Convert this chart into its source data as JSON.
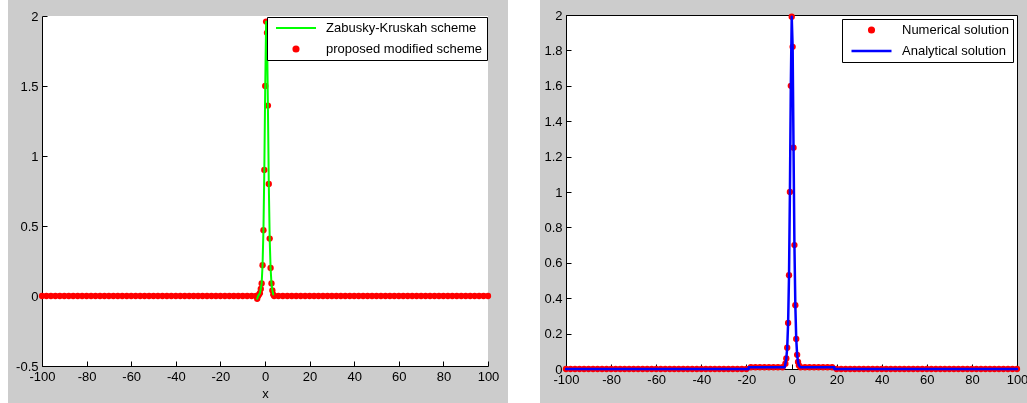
{
  "chart_data": [
    {
      "type": "line",
      "xlabel": "x",
      "xlim": [
        -100,
        100
      ],
      "xticks": [
        -100,
        -80,
        -60,
        -40,
        -20,
        0,
        20,
        40,
        60,
        80,
        100
      ],
      "ylim": [
        -0.5,
        2
      ],
      "yticks": [
        -0.5,
        0,
        0.5,
        1,
        1.5,
        2
      ],
      "legend": "top right",
      "series": [
        {
          "name": "Zabusky-Kruskah scheme",
          "type": "line",
          "color": "#00ff00",
          "x": [
            -3.5,
            -3.1,
            -2.7,
            -2.3,
            -1.9,
            -1.5,
            -1.1,
            -0.7,
            -0.3,
            0.1,
            0.5,
            0.9,
            1.3,
            1.7,
            2.1,
            2.5,
            2.9,
            3.3,
            3.7
          ],
          "values": [
            -0.02,
            0,
            0.01,
            0.02,
            0.05,
            0.09,
            0.22,
            0.47,
            0.9,
            1.5,
            1.96,
            1.88,
            1.36,
            0.8,
            0.41,
            0.2,
            0.09,
            0.04,
            0.01
          ]
        },
        {
          "name": "proposed modified scheme",
          "type": "scatter",
          "marker": "circle",
          "color": "#ff0000",
          "x": [
            -100,
            -98,
            -96,
            -94,
            -92,
            -90,
            -88,
            -86,
            -84,
            -82,
            -80,
            -78,
            -76,
            -74,
            -72,
            -70,
            -68,
            -66,
            -64,
            -62,
            -60,
            -58,
            -56,
            -54,
            -52,
            -50,
            -48,
            -46,
            -44,
            -42,
            -40,
            -38,
            -36,
            -34,
            -32,
            -30,
            -28,
            -26,
            -24,
            -22,
            -20,
            -18,
            -16,
            -14,
            -12,
            -10,
            -8,
            -6,
            -4,
            -3.5,
            -3.1,
            -2.7,
            -2.3,
            -1.9,
            -1.5,
            -1.1,
            -0.7,
            -0.3,
            0.1,
            0.5,
            0.9,
            1.3,
            1.7,
            2.1,
            2.5,
            2.9,
            3.3,
            3.7,
            4.1,
            6,
            8,
            10,
            12,
            14,
            16,
            18,
            20,
            22,
            24,
            26,
            28,
            30,
            32,
            34,
            36,
            38,
            40,
            42,
            44,
            46,
            48,
            50,
            52,
            54,
            56,
            58,
            60,
            62,
            64,
            66,
            68,
            70,
            72,
            74,
            76,
            78,
            80,
            82,
            84,
            86,
            88,
            90,
            92,
            94,
            96,
            98,
            100
          ],
          "values": [
            0,
            0,
            0,
            0,
            0,
            0,
            0,
            0,
            0,
            0,
            0,
            0,
            0,
            0,
            0,
            0,
            0,
            0,
            0,
            0,
            0,
            0,
            0,
            0,
            0,
            0,
            0,
            0,
            0,
            0,
            0,
            0,
            0,
            0,
            0,
            0,
            0,
            0,
            0,
            0,
            0,
            0,
            0,
            0,
            0,
            0,
            0,
            0,
            0,
            -0.02,
            0,
            0.01,
            0.02,
            0.05,
            0.09,
            0.22,
            0.47,
            0.9,
            1.5,
            1.96,
            1.88,
            1.36,
            0.8,
            0.41,
            0.2,
            0.09,
            0.04,
            0.01,
            0,
            0,
            0,
            0,
            0,
            0,
            0,
            0,
            0,
            0,
            0,
            0,
            0,
            0,
            0,
            0,
            0,
            0,
            0,
            0,
            0,
            0,
            0,
            0,
            0,
            0,
            0,
            0,
            0,
            0,
            0,
            0,
            0,
            0,
            0,
            0,
            0,
            0,
            0,
            0,
            0,
            0,
            0,
            0,
            0,
            0,
            0,
            0,
            0
          ]
        }
      ]
    },
    {
      "type": "line",
      "xlim": [
        -100,
        100
      ],
      "xticks": [
        -100,
        -80,
        -60,
        -40,
        -20,
        0,
        20,
        40,
        60,
        80,
        100
      ],
      "ylim": [
        0,
        2
      ],
      "yticks": [
        0,
        0.2,
        0.4,
        0.6,
        0.8,
        1,
        1.2,
        1.4,
        1.6,
        1.8,
        2
      ],
      "legend": "top right",
      "series": [
        {
          "name": "Numerical solution",
          "type": "scatter",
          "marker": "circle",
          "color": "#ff0000",
          "x": [
            -100,
            -98,
            -96,
            -94,
            -92,
            -90,
            -88,
            -86,
            -84,
            -82,
            -80,
            -78,
            -76,
            -74,
            -72,
            -70,
            -68,
            -66,
            -64,
            -62,
            -60,
            -58,
            -56,
            -54,
            -52,
            -50,
            -48,
            -46,
            -44,
            -42,
            -40,
            -38,
            -36,
            -34,
            -32,
            -30,
            -28,
            -26,
            -24,
            -22,
            -20,
            -18,
            -16,
            -14,
            -12,
            -10,
            -8,
            -6,
            -4,
            -2.7,
            -2.3,
            -1.9,
            -1.5,
            -1.1,
            -0.7,
            -0.3,
            0.1,
            0.5,
            0.9,
            1.3,
            1.7,
            2.1,
            2.5,
            2.9,
            3.3,
            4,
            6,
            8,
            10,
            12,
            14,
            16,
            18,
            20,
            22,
            24,
            26,
            28,
            30,
            32,
            34,
            36,
            38,
            40,
            42,
            44,
            46,
            48,
            50,
            52,
            54,
            56,
            58,
            60,
            62,
            64,
            66,
            68,
            70,
            72,
            74,
            76,
            78,
            80,
            82,
            84,
            86,
            88,
            90,
            92,
            94,
            96,
            98,
            100
          ],
          "values": [
            0,
            0,
            0,
            0,
            0,
            0,
            0,
            0,
            0,
            0,
            0,
            0,
            0,
            0,
            0,
            0,
            0,
            0,
            0,
            0,
            0,
            0,
            0,
            0,
            0,
            0,
            0,
            0,
            0,
            0,
            0,
            0,
            0,
            0,
            0,
            0,
            0,
            0,
            0,
            0,
            0,
            0.01,
            0.01,
            0.01,
            0.01,
            0.01,
            0.01,
            0.01,
            0.01,
            0.03,
            0.06,
            0.12,
            0.26,
            0.53,
            1,
            1.6,
            1.99,
            1.82,
            1.25,
            0.7,
            0.36,
            0.17,
            0.08,
            0.04,
            0.02,
            0.01,
            0.01,
            0.01,
            0.01,
            0.01,
            0.01,
            0.01,
            0.01,
            0,
            0,
            0,
            0,
            0,
            0,
            0,
            0,
            0,
            0,
            0,
            0,
            0,
            0,
            0,
            0,
            0,
            0,
            0,
            0,
            0,
            0,
            0,
            0,
            0,
            0,
            0,
            0,
            0,
            0,
            0,
            0,
            0,
            0,
            0,
            0,
            0,
            0,
            0,
            0,
            0
          ]
        },
        {
          "name": "Analytical solution",
          "type": "line",
          "color": "#0000ff",
          "x": [
            -100,
            -19,
            -19,
            -3,
            -2.7,
            -2.3,
            -1.9,
            -1.5,
            -1.1,
            -0.7,
            -0.3,
            0.1,
            0.5,
            0.9,
            1.3,
            1.7,
            2.1,
            2.5,
            2.9,
            3.3,
            4,
            19,
            19,
            100
          ],
          "values": [
            0,
            0,
            0.01,
            0.01,
            0.03,
            0.06,
            0.12,
            0.26,
            0.53,
            1,
            1.6,
            1.99,
            1.82,
            1.25,
            0.7,
            0.36,
            0.17,
            0.08,
            0.04,
            0.02,
            0.01,
            0.01,
            0,
            0
          ]
        }
      ]
    }
  ]
}
